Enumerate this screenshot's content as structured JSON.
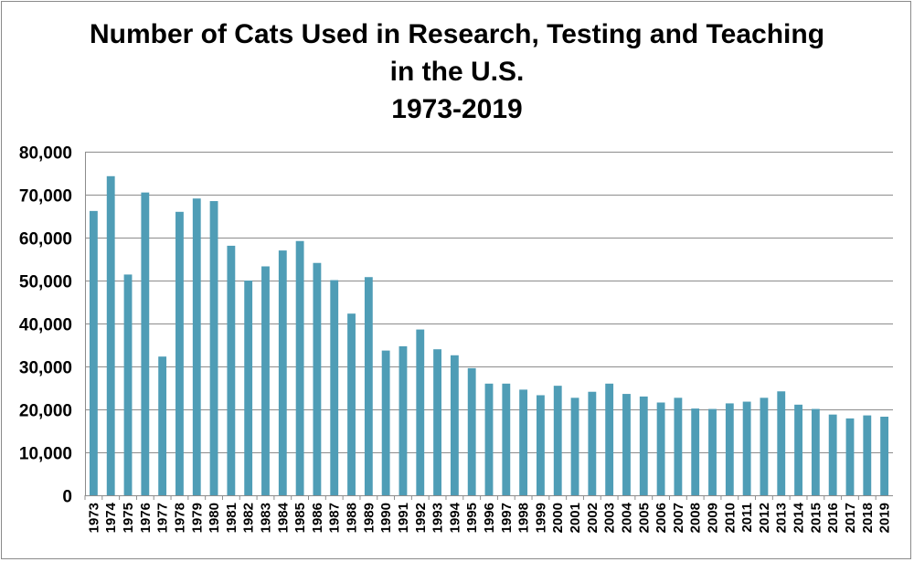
{
  "chart_data": {
    "type": "bar",
    "title_lines": [
      "Number of Cats Used in Research, Testing and Teaching",
      "in the U.S.",
      "1973-2019"
    ],
    "xlabel": "",
    "ylabel": "",
    "ylim": [
      0,
      80000
    ],
    "yticks": [
      0,
      10000,
      20000,
      30000,
      40000,
      50000,
      60000,
      70000,
      80000
    ],
    "ytick_labels": [
      "0",
      "10,000",
      "20,000",
      "30,000",
      "40,000",
      "50,000",
      "60,000",
      "70,000",
      "80,000"
    ],
    "grid": true,
    "bar_color": "#4F9DB6",
    "grid_color": "#8C8C8C",
    "categories": [
      "1973",
      "1974",
      "1975",
      "1976",
      "1977",
      "1978",
      "1979",
      "1980",
      "1981",
      "1982",
      "1983",
      "1984",
      "1985",
      "1986",
      "1987",
      "1988",
      "1989",
      "1990",
      "1991",
      "1992",
      "1993",
      "1994",
      "1995",
      "1996",
      "1997",
      "1998",
      "1999",
      "2000",
      "2001",
      "2002",
      "2003",
      "2004",
      "2005",
      "2006",
      "2007",
      "2008",
      "2009",
      "2010",
      "2011",
      "2012",
      "2013",
      "2014",
      "2015",
      "2016",
      "2017",
      "2018",
      "2019"
    ],
    "values": [
      66200,
      74300,
      51400,
      70500,
      32300,
      66000,
      69100,
      68500,
      58100,
      50000,
      53300,
      57000,
      59200,
      54100,
      50100,
      42300,
      50800,
      33700,
      34700,
      38600,
      34000,
      32600,
      29600,
      26000,
      26000,
      24600,
      23300,
      25500,
      22700,
      24100,
      26000,
      23600,
      23000,
      21600,
      22700,
      20200,
      20100,
      21400,
      21800,
      22700,
      24200,
      21100,
      20100,
      18800,
      17900,
      18600,
      18300
    ]
  }
}
